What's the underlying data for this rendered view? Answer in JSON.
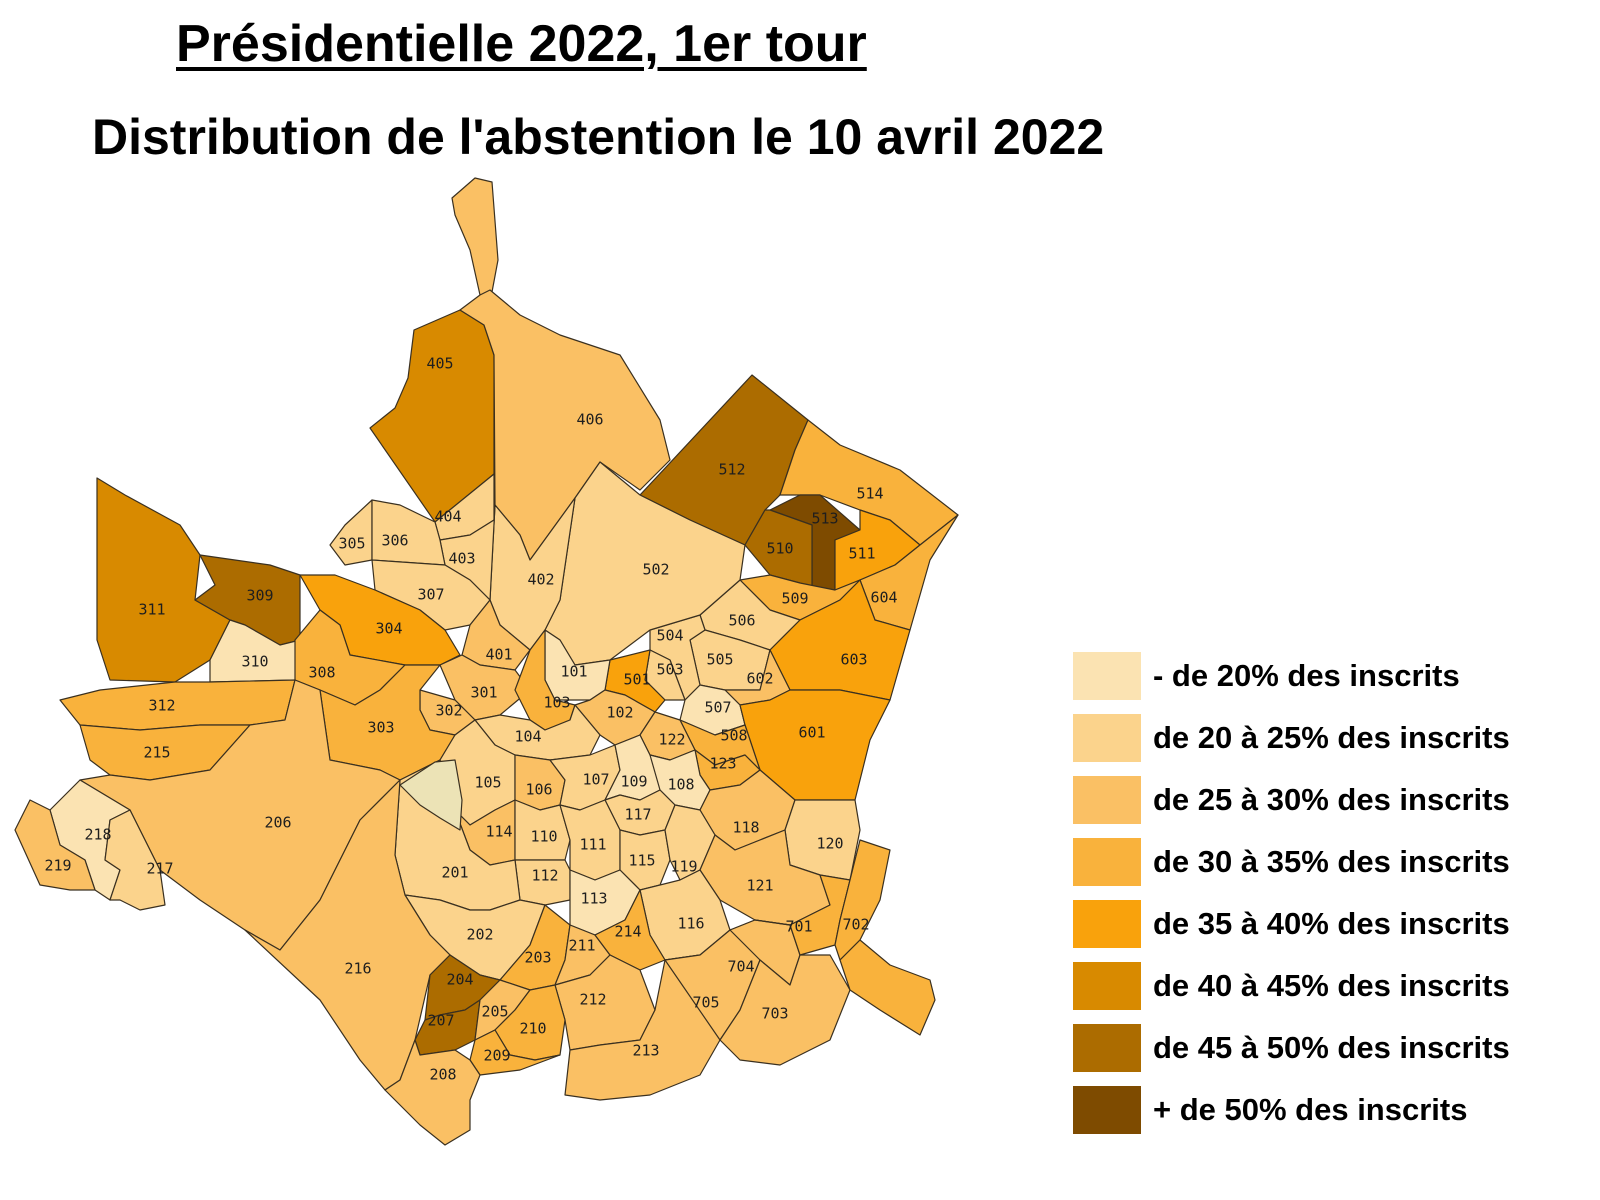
{
  "title": "Présidentielle 2022, 1er tour",
  "subtitle": "Distribution de l'abstention le 10 avril 2022",
  "legend": [
    {
      "label": "- de 20% des inscrits",
      "color": "#fbe3b2"
    },
    {
      "label": "de 20 à 25% des inscrits",
      "color": "#fbd38c"
    },
    {
      "label": "de 25 à 30% des inscrits",
      "color": "#fac064"
    },
    {
      "label": "de 30 à 35% des inscrits",
      "color": "#f9b23c"
    },
    {
      "label": "de 35 à 40% des inscrits",
      "color": "#f9a20c"
    },
    {
      "label": "de 40 à 45% des inscrits",
      "color": "#d88a00"
    },
    {
      "label": "de 45 à 50% des inscrits",
      "color": "#ac6c00"
    },
    {
      "label": "+ de 50% des inscrits",
      "color": "#7e4b00"
    }
  ],
  "districts": [
    {
      "id": "405",
      "cls": 5
    },
    {
      "id": "406",
      "cls": 2
    },
    {
      "id": "512",
      "cls": 6
    },
    {
      "id": "514",
      "cls": 3
    },
    {
      "id": "513",
      "cls": 7
    },
    {
      "id": "510",
      "cls": 6
    },
    {
      "id": "511",
      "cls": 4
    },
    {
      "id": "604",
      "cls": 3
    },
    {
      "id": "509",
      "cls": 3
    },
    {
      "id": "506",
      "cls": 1
    },
    {
      "id": "603",
      "cls": 4
    },
    {
      "id": "505",
      "cls": 1
    },
    {
      "id": "504",
      "cls": 1
    },
    {
      "id": "602",
      "cls": 2
    },
    {
      "id": "503",
      "cls": 1
    },
    {
      "id": "501",
      "cls": 4
    },
    {
      "id": "507",
      "cls": 0
    },
    {
      "id": "601",
      "cls": 4
    },
    {
      "id": "508",
      "cls": 3
    },
    {
      "id": "502",
      "cls": 1
    },
    {
      "id": "402",
      "cls": 1
    },
    {
      "id": "404",
      "cls": 1
    },
    {
      "id": "403",
      "cls": 1
    },
    {
      "id": "305",
      "cls": 1
    },
    {
      "id": "306",
      "cls": 1
    },
    {
      "id": "307",
      "cls": 1
    },
    {
      "id": "401",
      "cls": 2
    },
    {
      "id": "311",
      "cls": 5
    },
    {
      "id": "309",
      "cls": 6
    },
    {
      "id": "304",
      "cls": 4
    },
    {
      "id": "310",
      "cls": 0
    },
    {
      "id": "308",
      "cls": 3
    },
    {
      "id": "301",
      "cls": 2
    },
    {
      "id": "302",
      "cls": 2
    },
    {
      "id": "303",
      "cls": 3
    },
    {
      "id": "312",
      "cls": 3
    },
    {
      "id": "215",
      "cls": 3
    },
    {
      "id": "101",
      "cls": 0
    },
    {
      "id": "103",
      "cls": 3
    },
    {
      "id": "102",
      "cls": 2
    },
    {
      "id": "104",
      "cls": 1
    },
    {
      "id": "122",
      "cls": 2
    },
    {
      "id": "123",
      "cls": 3
    },
    {
      "id": "105",
      "cls": 1
    },
    {
      "id": "106",
      "cls": 2
    },
    {
      "id": "107",
      "cls": 1
    },
    {
      "id": "109",
      "cls": 0
    },
    {
      "id": "108",
      "cls": 0
    },
    {
      "id": "117",
      "cls": 1
    },
    {
      "id": "118",
      "cls": 2
    },
    {
      "id": "120",
      "cls": 1
    },
    {
      "id": "114",
      "cls": 2
    },
    {
      "id": "110",
      "cls": 1
    },
    {
      "id": "111",
      "cls": 1
    },
    {
      "id": "115",
      "cls": 1
    },
    {
      "id": "119",
      "cls": 1
    },
    {
      "id": "112",
      "cls": 1
    },
    {
      "id": "113",
      "cls": 0
    },
    {
      "id": "121",
      "cls": 2
    },
    {
      "id": "116",
      "cls": 1
    },
    {
      "id": "206",
      "cls": 2
    },
    {
      "id": "201",
      "cls": 1
    },
    {
      "id": "202",
      "cls": 1
    },
    {
      "id": "218",
      "cls": 0
    },
    {
      "id": "217",
      "cls": 1
    },
    {
      "id": "219",
      "cls": 2
    },
    {
      "id": "216",
      "cls": 2
    },
    {
      "id": "203",
      "cls": 3
    },
    {
      "id": "211",
      "cls": 2
    },
    {
      "id": "214",
      "cls": 3
    },
    {
      "id": "212",
      "cls": 2
    },
    {
      "id": "204",
      "cls": 6
    },
    {
      "id": "207",
      "cls": 6
    },
    {
      "id": "205",
      "cls": 2
    },
    {
      "id": "210",
      "cls": 3
    },
    {
      "id": "209",
      "cls": 3
    },
    {
      "id": "208",
      "cls": 2
    },
    {
      "id": "213",
      "cls": 2
    },
    {
      "id": "705",
      "cls": 2
    },
    {
      "id": "704",
      "cls": 2
    },
    {
      "id": "703",
      "cls": 2
    },
    {
      "id": "701",
      "cls": 3
    },
    {
      "id": "702",
      "cls": 3
    }
  ]
}
